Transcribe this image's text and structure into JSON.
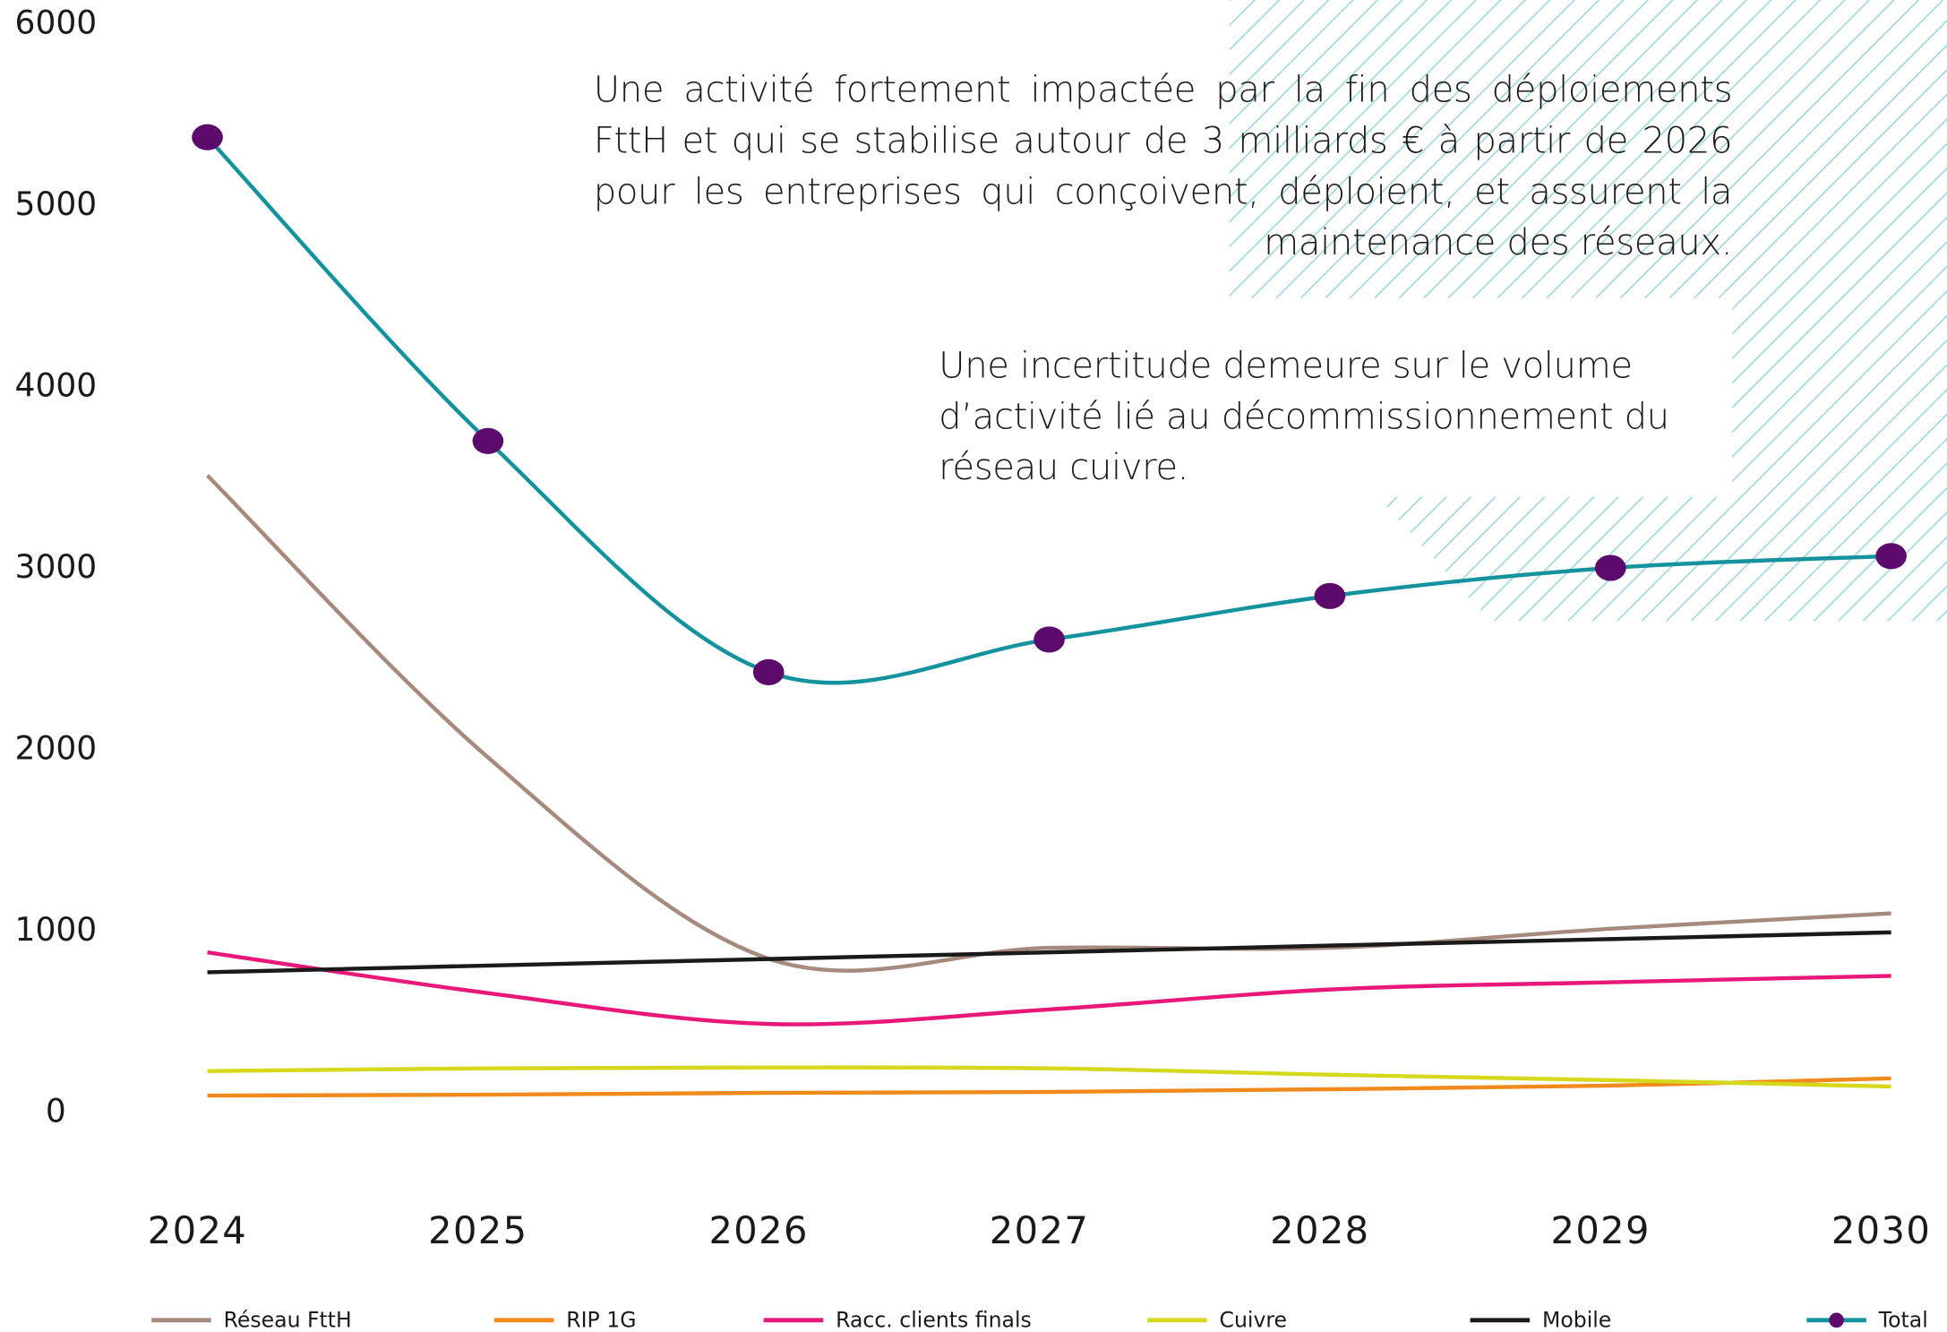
{
  "chart_data": {
    "type": "line",
    "annotations": [
      "Une activité fortement impactée par la fin des déploiements FttH et qui se stabilise autour de 3 milliards € à partir de 2026 pour les entreprises qui conçoivent, déploient, et assurent la maintenance des réseaux.",
      "Une incertitude demeure sur le volume d’activité lié au décommissionnement du réseau cuivre."
    ],
    "categories": [
      "2024",
      "2025",
      "2026",
      "2027",
      "2028",
      "2029",
      "2030"
    ],
    "series": [
      {
        "name": "Réseau FttH",
        "color": "#a68a7e",
        "values": [
          3515,
          1960,
          850,
          910,
          910,
          1015,
          1100
        ]
      },
      {
        "name": "RIP 1G",
        "color": "#f08a1c",
        "values": [
          95,
          100,
          110,
          115,
          130,
          150,
          190
        ]
      },
      {
        "name": "Racc. clients finals",
        "color": "#e8177a",
        "values": [
          885,
          660,
          490,
          570,
          680,
          720,
          755
        ]
      },
      {
        "name": "Cuivre",
        "color": "#d6d81e",
        "values": [
          230,
          245,
          250,
          245,
          210,
          180,
          145
        ]
      },
      {
        "name": "Mobile",
        "color": "#1a1a1a",
        "values": [
          775,
          812,
          848,
          885,
          922,
          958,
          995
        ]
      },
      {
        "name": "Total",
        "color": "#14939e",
        "marker_color": "#5c0a6b",
        "values": [
          5380,
          3705,
          2430,
          2610,
          2850,
          3005,
          3070
        ]
      }
    ],
    "ylim": [
      0,
      6000
    ],
    "yticks": [
      0,
      1000,
      2000,
      3000,
      4000,
      5000,
      6000
    ],
    "grid": false,
    "legend": "bottom"
  }
}
